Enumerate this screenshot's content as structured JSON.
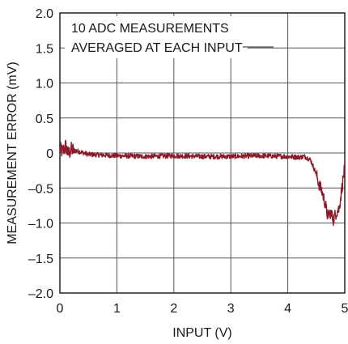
{
  "chart_data": {
    "type": "line",
    "title": "",
    "xlabel": "INPUT (V)",
    "ylabel": "MEASUREMENT ERROR (mV)",
    "xlim": [
      0,
      5
    ],
    "ylim": [
      -2.0,
      2.0
    ],
    "xticks": [
      0,
      1,
      2,
      3,
      4,
      5
    ],
    "xtick_labels": [
      "0",
      "1",
      "2",
      "3",
      "4",
      "5"
    ],
    "yticks": [
      2.0,
      1.5,
      1.0,
      0.5,
      0,
      -0.5,
      -1.0,
      -1.5,
      -2.0
    ],
    "ytick_labels": [
      "2.0",
      "1.5",
      "1.0",
      "0.5",
      "0",
      "–0.5",
      "–1.0",
      "–1.5",
      "–2.0"
    ],
    "grid": true,
    "annotation_lines": [
      "10 ADC MEASUREMENTS",
      "AVERAGED AT EACH INPUT"
    ],
    "series": [
      {
        "color": "#8b1a2b",
        "x": [
          0.0,
          0.05,
          0.1,
          0.15,
          0.2,
          0.3,
          0.5,
          0.75,
          1.0,
          1.5,
          2.0,
          2.5,
          3.0,
          3.5,
          4.0,
          4.2,
          4.3,
          4.4,
          4.45,
          4.5,
          4.55,
          4.6,
          4.65,
          4.7,
          4.75,
          4.8,
          4.85,
          4.9,
          4.95,
          5.0
        ],
        "y": [
          0.05,
          0.02,
          0.1,
          -0.02,
          0.05,
          0.03,
          -0.02,
          -0.03,
          -0.04,
          -0.05,
          -0.04,
          -0.05,
          -0.05,
          -0.04,
          -0.05,
          -0.06,
          -0.05,
          -0.1,
          -0.2,
          -0.3,
          -0.45,
          -0.55,
          -0.7,
          -0.9,
          -0.85,
          -0.95,
          -0.85,
          -0.8,
          -0.5,
          -0.2
        ]
      }
    ]
  }
}
